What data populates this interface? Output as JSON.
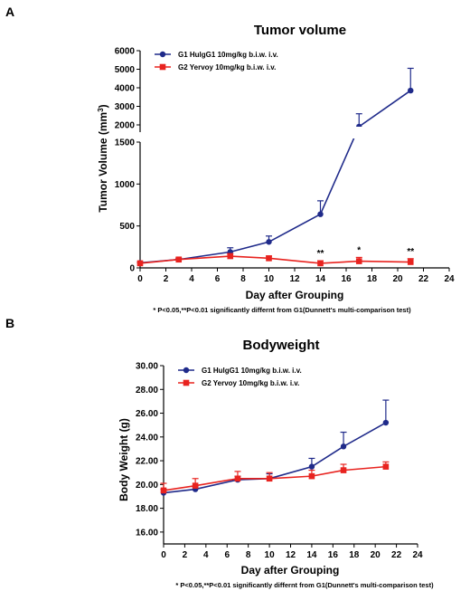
{
  "panel_labels": [
    "A",
    "B"
  ],
  "colors": {
    "g1": "#1f2a8a",
    "g2": "#e8231f",
    "axis": "#000000"
  },
  "chart_data": [
    {
      "type": "line",
      "title": "Tumor volume",
      "ylabel_text": "Tumor Volume (mm",
      "ylabel_sup": "3",
      "ylabel_close": ")",
      "xlabel": "Day after Grouping",
      "xlim": [
        0,
        24
      ],
      "x_ticks": [
        0,
        2,
        4,
        6,
        8,
        10,
        12,
        14,
        16,
        18,
        20,
        22,
        24
      ],
      "y_axis_break": true,
      "ylim_lower": [
        0,
        1500
      ],
      "y_ticks_lower": [
        0,
        500,
        1000,
        1500
      ],
      "ylim_upper": [
        2000,
        6000
      ],
      "y_ticks_upper": [
        2000,
        3000,
        4000,
        5000,
        6000
      ],
      "grid": false,
      "legend_position": "top-left",
      "series": [
        {
          "name": "G1 HulgG1 10mg/kg b.i.w. i.v.",
          "color_key": "g1",
          "marker": "circle",
          "x": [
            0,
            3,
            7,
            10,
            14,
            17,
            21
          ],
          "y": [
            60,
            100,
            190,
            310,
            640,
            1950,
            3850
          ],
          "err": [
            10,
            15,
            50,
            70,
            160,
            650,
            1200
          ]
        },
        {
          "name": "G2 Yervoy 10mg/kg b.i.w. i.v.",
          "color_key": "g2",
          "marker": "square",
          "x": [
            0,
            3,
            7,
            10,
            14,
            17,
            21
          ],
          "y": [
            55,
            100,
            140,
            115,
            55,
            80,
            70
          ],
          "err": [
            8,
            15,
            30,
            25,
            30,
            45,
            40
          ]
        }
      ],
      "annotations": [
        {
          "text": "**",
          "x": 14
        },
        {
          "text": "*",
          "x": 17
        },
        {
          "text": "**",
          "x": 21
        }
      ],
      "footnote": "* P<0.05,**P<0.01 significantly differnt from G1(Dunnett's multi-comparison test)"
    },
    {
      "type": "line",
      "title": "Bodyweight",
      "ylabel": "Body Weight (g)",
      "xlabel": "Day after Grouping",
      "xlim": [
        0,
        24
      ],
      "x_ticks": [
        0,
        2,
        4,
        6,
        8,
        10,
        12,
        14,
        16,
        18,
        20,
        22,
        24
      ],
      "ylim": [
        15,
        30
      ],
      "y_ticks": [
        "16.00",
        "18.00",
        "20.00",
        "22.00",
        "24.00",
        "26.00",
        "28.00",
        "30.00"
      ],
      "grid": false,
      "legend_position": "top-left",
      "series": [
        {
          "name": "G1 HulgG1 10mg/kg b.i.w. i.v.",
          "color_key": "g1",
          "marker": "circle",
          "x": [
            0,
            3,
            7,
            10,
            14,
            17,
            21
          ],
          "y": [
            19.3,
            19.6,
            20.4,
            20.5,
            21.5,
            23.2,
            25.2
          ],
          "err": [
            0.3,
            0.2,
            0.3,
            0.4,
            0.7,
            1.2,
            1.9
          ]
        },
        {
          "name": "G2 Yervoy 10mg/kg b.i.w. i.v.",
          "color_key": "g2",
          "marker": "square",
          "x": [
            0,
            3,
            7,
            10,
            14,
            17,
            21
          ],
          "y": [
            19.5,
            19.9,
            20.5,
            20.5,
            20.7,
            21.2,
            21.5
          ],
          "err": [
            0.6,
            0.6,
            0.6,
            0.5,
            0.5,
            0.5,
            0.4
          ]
        }
      ],
      "footnote": "* P<0.05,**P<0.01 significantly differnt from G1(Dunnett's multi-comparison test)"
    }
  ]
}
